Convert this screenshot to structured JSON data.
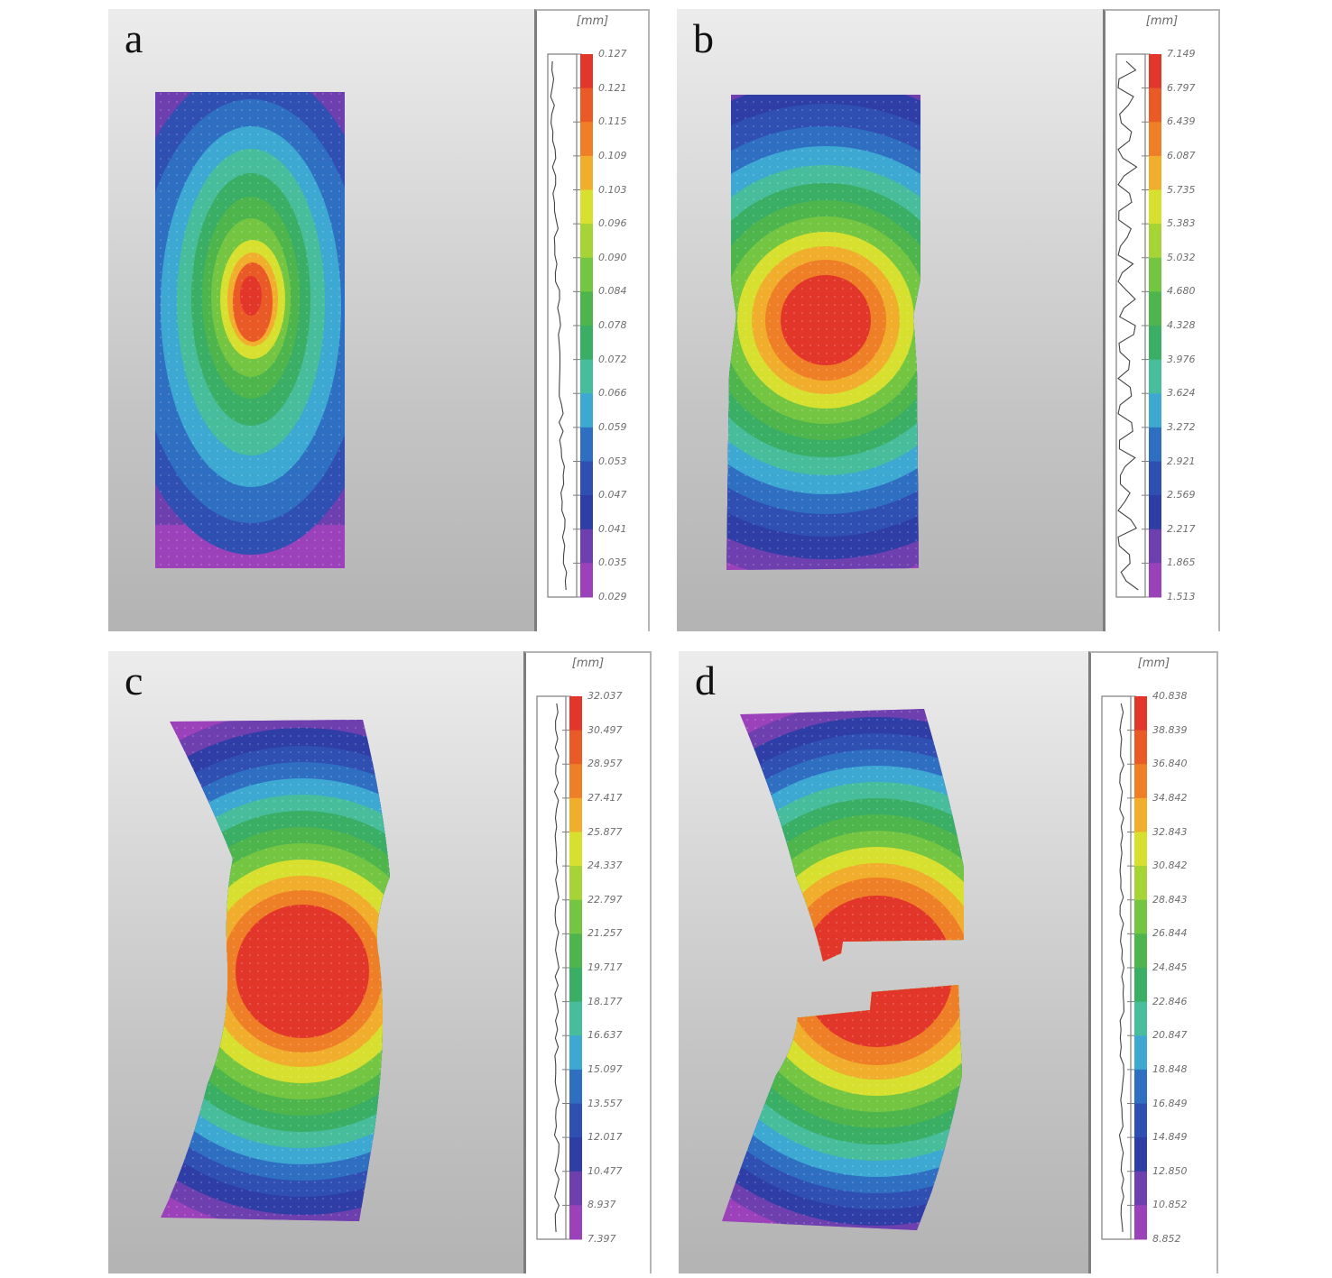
{
  "colors": {
    "scale": [
      "#e2362a",
      "#ea5a26",
      "#ef7f27",
      "#f1ae2c",
      "#d7df2f",
      "#a6d436",
      "#74c542",
      "#4db54c",
      "#3aae65",
      "#48bd9b",
      "#3da9d3",
      "#2f6fc2",
      "#2f4fb3",
      "#2f3da6",
      "#6e3fae",
      "#9b42bb"
    ],
    "grid": "#e4e4e4",
    "frame": "#7d7d7d",
    "histogram": "#444444"
  },
  "panels": [
    {
      "label": "a",
      "unit": "[mm]",
      "ticks": [
        "0.127",
        "0.121",
        "0.115",
        "0.109",
        "0.103",
        "0.096",
        "0.090",
        "0.084",
        "0.078",
        "0.072",
        "0.066",
        "0.059",
        "0.053",
        "0.047",
        "0.041",
        "0.035",
        "0.029"
      ],
      "specimen_shape": "straight"
    },
    {
      "label": "b",
      "unit": "[mm]",
      "ticks": [
        "7.149",
        "6.797",
        "6.439",
        "6.087",
        "5.735",
        "5.383",
        "5.032",
        "4.680",
        "4.328",
        "3.976",
        "3.624",
        "3.272",
        "2.921",
        "2.569",
        "2.217",
        "1.865",
        "1.513"
      ],
      "specimen_shape": "slightly-necked"
    },
    {
      "label": "c",
      "unit": "[mm]",
      "ticks": [
        "32.037",
        "30.497",
        "28.957",
        "27.417",
        "25.877",
        "24.337",
        "22.797",
        "21.257",
        "19.717",
        "18.177",
        "16.637",
        "15.097",
        "13.557",
        "12.017",
        "10.477",
        "8.937",
        "7.397"
      ],
      "specimen_shape": "bent"
    },
    {
      "label": "d",
      "unit": "[mm]",
      "ticks": [
        "40.838",
        "38.839",
        "36.840",
        "34.842",
        "32.843",
        "30.842",
        "28.843",
        "26.844",
        "24.845",
        "22.846",
        "20.847",
        "18.848",
        "16.849",
        "14.849",
        "12.850",
        "10.852",
        "8.852"
      ],
      "specimen_shape": "fractured"
    }
  ]
}
